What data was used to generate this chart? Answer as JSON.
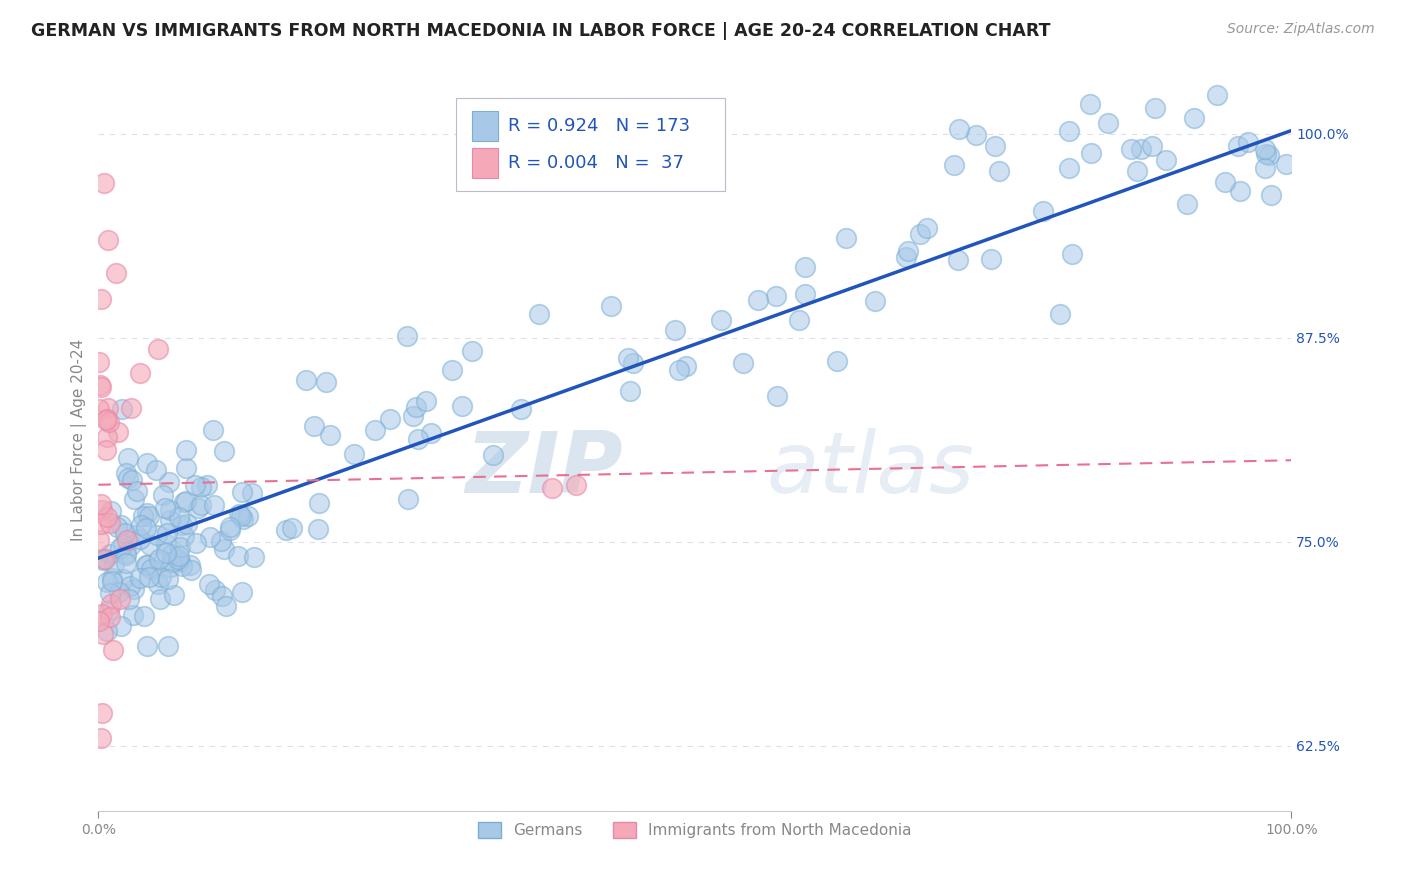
{
  "title": "GERMAN VS IMMIGRANTS FROM NORTH MACEDONIA IN LABOR FORCE | AGE 20-24 CORRELATION CHART",
  "source": "Source: ZipAtlas.com",
  "ylabel": "In Labor Force | Age 20-24",
  "x_min": 0.0,
  "x_max": 1.0,
  "y_min": 0.585,
  "y_max": 1.04,
  "y_ticks": [
    0.625,
    0.75,
    0.875,
    1.0
  ],
  "y_tick_labels": [
    "62.5%",
    "75.0%",
    "87.5%",
    "100.0%"
  ],
  "x_tick_labels": [
    "0.0%",
    "100.0%"
  ],
  "blue_color": "#a8c8e8",
  "pink_color": "#f4a8b8",
  "blue_edge_color": "#7aaed4",
  "pink_edge_color": "#e888a8",
  "blue_line_color": "#2255bb",
  "pink_line_color": "#e87090",
  "legend_blue_R": "0.924",
  "legend_blue_N": "173",
  "legend_pink_R": "0.004",
  "legend_pink_N": "37",
  "legend_label_blue": "Germans",
  "legend_label_pink": "Immigrants from North Macedonia",
  "watermark_zip": "ZIP",
  "watermark_atlas": "atlas",
  "title_fontsize": 12.5,
  "source_fontsize": 10,
  "axis_label_fontsize": 11,
  "tick_fontsize": 10,
  "blue_line_y0": 0.74,
  "blue_line_y1": 1.002,
  "pink_line_y0": 0.785,
  "pink_line_y1": 0.8,
  "background_color": "#ffffff",
  "grid_color": "#ddddee",
  "title_color": "#222222",
  "axis_color": "#888888",
  "legend_text_color": "#2255bb",
  "legend_rn_color": "#2255bb"
}
